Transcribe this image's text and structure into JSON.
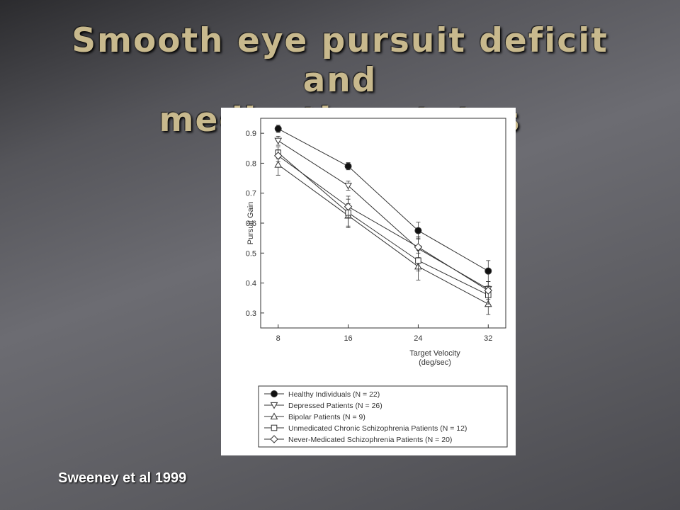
{
  "slide": {
    "title_line1": "Smooth eye pursuit deficit and",
    "title_line2": "medication status",
    "caption": "Sweeney et al 1999"
  },
  "colors": {
    "title": "#c8b98d",
    "caption": "#ffffff",
    "ink": "#333333"
  },
  "chart_data": {
    "type": "line",
    "title": "",
    "xlabel_line1": "Target Velocity",
    "xlabel_line2": "(deg/sec)",
    "ylabel": "Pursuit Gain",
    "x": [
      8,
      16,
      24,
      32
    ],
    "xticks": [
      "8",
      "16",
      "24",
      "32"
    ],
    "yticks": [
      0.3,
      0.4,
      0.5,
      0.6,
      0.7,
      0.8,
      0.9
    ],
    "ytick_labels": [
      "0.3",
      "0.4",
      "0.5",
      "0.6",
      "0.7",
      "0.8",
      "0.9"
    ],
    "xlim": [
      6,
      34
    ],
    "ylim": [
      0.25,
      0.95
    ],
    "series": [
      {
        "name": "Healthy Individuals (N = 22)",
        "marker": "filled-circle",
        "values": [
          0.915,
          0.79,
          0.575,
          0.44
        ],
        "errors": [
          0.012,
          0.012,
          0.028,
          0.035
        ]
      },
      {
        "name": "Depressed Patients (N = 26)",
        "marker": "triangle-down",
        "values": [
          0.875,
          0.725,
          0.515,
          0.38
        ],
        "errors": [
          0.015,
          0.015,
          0.035,
          0.025
        ]
      },
      {
        "name": "Bipolar Patients (N = 9)",
        "marker": "triangle-up",
        "values": [
          0.795,
          0.625,
          0.455,
          0.33
        ],
        "errors": [
          0.035,
          0.04,
          0.045,
          0.035
        ]
      },
      {
        "name": "Unmedicated Chronic Schizophrenia Patients (N = 12)",
        "marker": "square",
        "values": [
          0.835,
          0.635,
          0.475,
          0.36
        ],
        "errors": [
          0.02,
          0.045,
          0.035,
          0.03
        ]
      },
      {
        "name": "Never-Medicated Schizophrenia Patients  (N = 20)",
        "marker": "diamond",
        "values": [
          0.825,
          0.655,
          0.52,
          0.375
        ],
        "errors": [
          0.02,
          0.035,
          0.035,
          0.03
        ]
      }
    ],
    "legend_position": "bottom"
  }
}
